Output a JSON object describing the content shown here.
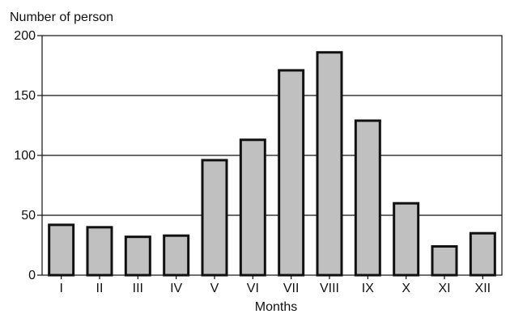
{
  "chart_data": {
    "type": "bar",
    "ylabel": "Number of person",
    "xlabel": "Months",
    "categories": [
      "I",
      "II",
      "III",
      "IV",
      "V",
      "VI",
      "VII",
      "VIII",
      "IX",
      "X",
      "XI",
      "XII"
    ],
    "values": [
      42,
      40,
      32,
      33,
      96,
      113,
      171,
      186,
      129,
      60,
      24,
      35
    ],
    "ylim": [
      0,
      200
    ],
    "yticks": [
      0,
      50,
      100,
      150,
      200
    ],
    "grid": true,
    "colors": {
      "bar_fill": "#c0c0c0",
      "bar_stroke": "#111111"
    }
  }
}
